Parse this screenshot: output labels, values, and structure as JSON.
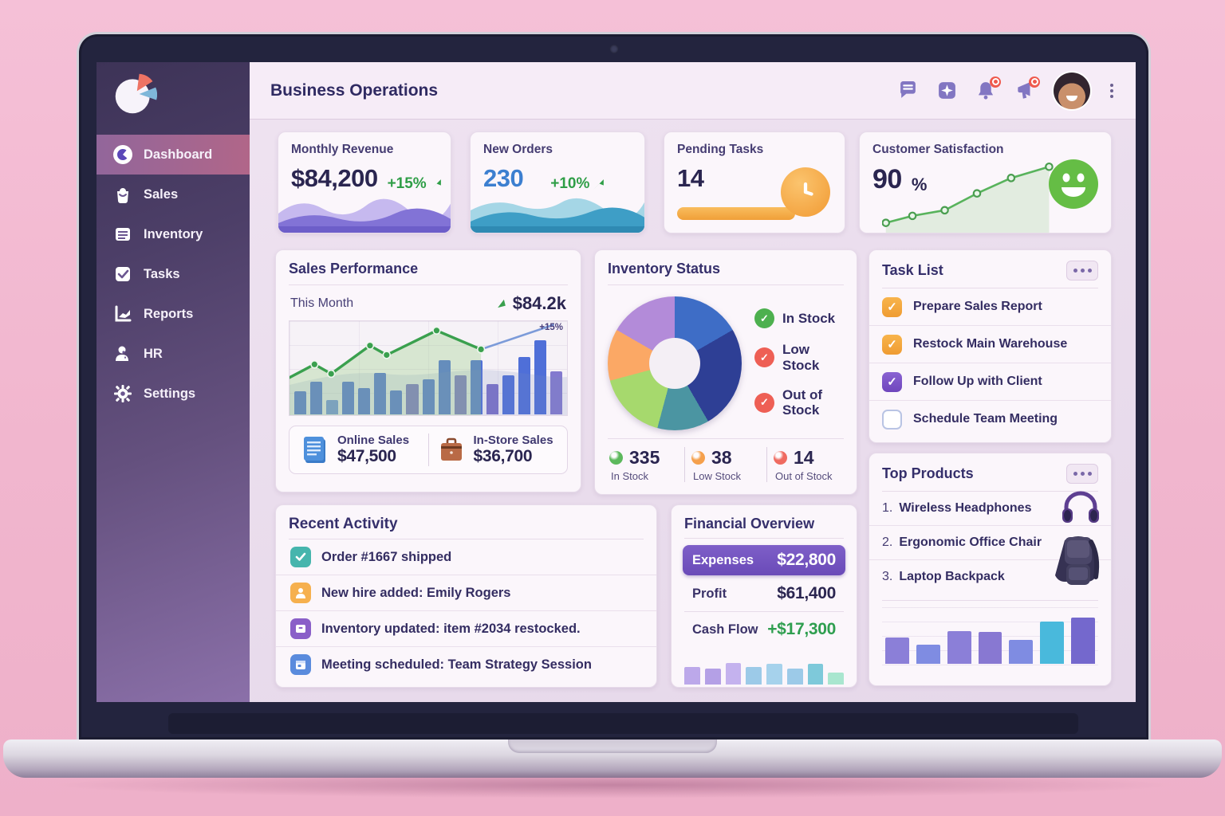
{
  "header": {
    "title": "Business Operations",
    "icons": [
      "chat-icon",
      "sparkle-square-icon",
      "bell-icon",
      "megaphone-icon",
      "avatar",
      "kebab-menu-icon"
    ]
  },
  "sidebar": {
    "logo": "pie-chart-logo",
    "items": [
      {
        "label": "Dashboard",
        "icon": "dashboard-icon",
        "active": true
      },
      {
        "label": "Sales",
        "icon": "sales-icon",
        "active": false
      },
      {
        "label": "Inventory",
        "icon": "inventory-icon",
        "active": false
      },
      {
        "label": "Tasks",
        "icon": "tasks-icon",
        "active": false
      },
      {
        "label": "Reports",
        "icon": "reports-icon",
        "active": false
      },
      {
        "label": "HR",
        "icon": "hr-icon",
        "active": false
      },
      {
        "label": "Settings",
        "icon": "settings-icon",
        "active": false
      }
    ]
  },
  "kpis": {
    "monthly_revenue": {
      "title": "Monthly Revenue",
      "value": "$84,200",
      "delta": "+15%"
    },
    "new_orders": {
      "title": "New Orders",
      "value": "230",
      "delta": "+10%"
    },
    "pending_tasks": {
      "title": "Pending Tasks",
      "value": "14"
    },
    "customer_satisfaction": {
      "title": "Customer Satisfaction",
      "value": "90",
      "unit": "%",
      "chart_data": {
        "type": "line",
        "points_pct": [
          [
            2,
            86
          ],
          [
            16,
            76
          ],
          [
            33,
            68
          ],
          [
            50,
            44
          ],
          [
            68,
            22
          ],
          [
            88,
            6
          ]
        ]
      }
    }
  },
  "sales_performance": {
    "title": "Sales Performance",
    "period_label": "This Month",
    "period_value": "$84.2k",
    "online": {
      "label": "Online Sales",
      "value": "$47,500"
    },
    "instore": {
      "label": "In-Store Sales",
      "value": "$36,700"
    },
    "chart_data": {
      "type": "bar+line",
      "bars": [
        26,
        36,
        16,
        36,
        29,
        46,
        27,
        34,
        39,
        60,
        43,
        60,
        34,
        43,
        64,
        82,
        48
      ],
      "bar_colors": [
        "#4f6fd8",
        "#4f6fd8",
        "#6f8fe0",
        "#4f6fd8",
        "#4f6fd8",
        "#4f6fd8",
        "#4f6fd8",
        "#7a6fc9",
        "#4f6fd8",
        "#4f6fd8",
        "#7a6fc9",
        "#4f6fd8",
        "#7a6fc9",
        "#4f6fd8",
        "#4f6fd8",
        "#4f6fd8",
        "#8379cf"
      ],
      "trend_line": {
        "color": "#3aa04e",
        "points_pct": [
          [
            0,
            60
          ],
          [
            9,
            46
          ],
          [
            15,
            56
          ],
          [
            29,
            26
          ],
          [
            35,
            36
          ],
          [
            53,
            10
          ],
          [
            69,
            30
          ]
        ]
      },
      "projection_line": {
        "color": "#7c9bd9",
        "label": "+15%",
        "points_pct": [
          [
            69,
            30
          ],
          [
            95,
            4
          ]
        ]
      }
    }
  },
  "inventory_status": {
    "title": "Inventory Status",
    "legend": [
      {
        "label": "In Stock",
        "color": "#4db04f"
      },
      {
        "label": "Low Stock",
        "color": "#ee5f55"
      },
      {
        "label": "Out of Stock",
        "color": "#ee5f55"
      }
    ],
    "stats": [
      {
        "value": "335",
        "label": "In Stock",
        "color": "#5cb85c"
      },
      {
        "value": "38",
        "label": "Low Stock",
        "color": "#f5a04c"
      },
      {
        "value": "14",
        "label": "Out of Stock",
        "color": "#ef6a60"
      }
    ],
    "chart_data": {
      "type": "donut",
      "segments": [
        {
          "color": "#3e6dc6",
          "deg": 60
        },
        {
          "color": "#2e3f95",
          "deg": 90
        },
        {
          "color": "#4b95a2",
          "deg": 45
        },
        {
          "color": "#a6d96d",
          "deg": 60
        },
        {
          "color": "#fba865",
          "deg": 45
        },
        {
          "color": "#b38bd9",
          "deg": 60
        }
      ]
    }
  },
  "task_list": {
    "title": "Task List",
    "items": [
      {
        "label": "Prepare Sales Report",
        "state": "checked-orange"
      },
      {
        "label": "Restock Main Warehouse",
        "state": "checked-orange"
      },
      {
        "label": "Follow Up with Client",
        "state": "checked-purple"
      },
      {
        "label": "Schedule Team Meeting",
        "state": "unchecked"
      }
    ]
  },
  "top_products": {
    "title": "Top Products",
    "items": [
      {
        "rank": "1.",
        "name": "Wireless Headphones"
      },
      {
        "rank": "2.",
        "name": "Ergonomic Office Chair"
      },
      {
        "rank": "3.",
        "name": "Laptop Backpack"
      }
    ],
    "chart_data": {
      "type": "bar",
      "values": [
        46,
        34,
        58,
        57,
        42,
        74,
        82
      ],
      "colors": [
        "#8b7fd8",
        "#7f8ce2",
        "#8b7fd8",
        "#8878d2",
        "#7f8ce2",
        "#49b9dc",
        "#7468cd"
      ]
    }
  },
  "recent_activity": {
    "title": "Recent Activity",
    "items": [
      {
        "text": "Order #1667 shipped",
        "icon": "check-icon",
        "color": "#46b5ad"
      },
      {
        "text": "New hire added: Emily Rogers",
        "icon": "person-icon",
        "color": "#f6b04e"
      },
      {
        "text": "Inventory updated: item #2034 restocked.",
        "icon": "box-icon",
        "color": "#8a5fc8"
      },
      {
        "text": "Meeting scheduled: Team Strategy Session",
        "icon": "calendar-icon",
        "color": "#5a8bdd"
      }
    ]
  },
  "financial_overview": {
    "title": "Financial Overview",
    "rows": [
      {
        "label": "Expenses",
        "value": "$22,800",
        "highlight": true
      },
      {
        "label": "Profit",
        "value": "$61,400",
        "highlight": false
      },
      {
        "label": "Cash Flow",
        "value": "+$17,300",
        "positive": true
      }
    ],
    "chart_data": {
      "type": "bar",
      "values": [
        50,
        46,
        62,
        50,
        58,
        45,
        58,
        34
      ],
      "colors": [
        "#bca8ea",
        "#b4a0e6",
        "#c4b2ee",
        "#9ccae8",
        "#a6d2ec",
        "#9ccae8",
        "#7ec9da",
        "#a9e6cf"
      ]
    }
  }
}
